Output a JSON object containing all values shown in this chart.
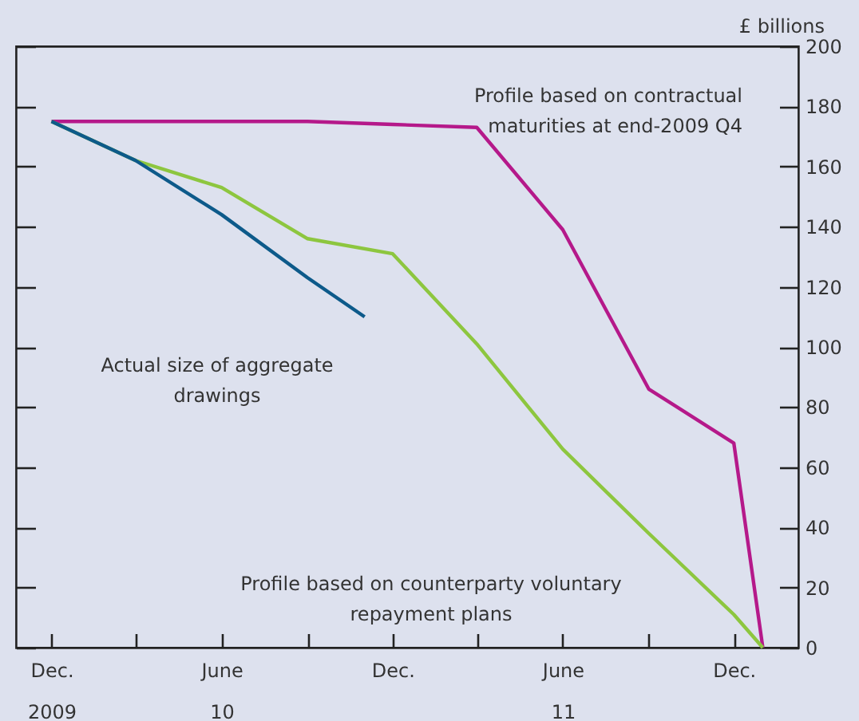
{
  "chart_data": {
    "type": "line",
    "ylabel": "£ billions",
    "xlim": [
      "2009-10-24",
      "2012-02-08"
    ],
    "ylim": [
      0,
      200
    ],
    "yticks": [
      0,
      20,
      40,
      60,
      80,
      100,
      120,
      140,
      160,
      180,
      200
    ],
    "xticks": [
      {
        "value": "2009-12",
        "label": "Dec.\n2009"
      },
      {
        "value": "2010-03",
        "label": null
      },
      {
        "value": "2010-06",
        "label": "June\n10"
      },
      {
        "value": "2010-09",
        "label": null
      },
      {
        "value": "2010-12",
        "label": "Dec."
      },
      {
        "value": "2011-03",
        "label": null
      },
      {
        "value": "2011-06",
        "label": "June\n11"
      },
      {
        "value": "2011-09",
        "label": null
      },
      {
        "value": "2011-12",
        "label": "Dec."
      }
    ],
    "grid": false,
    "legend": false,
    "series": [
      {
        "name": "Profile based on contractual maturities at end-2009 Q4",
        "color": "#b5198a",
        "x": [
          "2009-12",
          "2010-06",
          "2010-09",
          "2010-12",
          "2011-03",
          "2011-06",
          "2011-09",
          "2011-12",
          "2012-01"
        ],
        "values": [
          175,
          175,
          175,
          174,
          173,
          139,
          86,
          68,
          0
        ]
      },
      {
        "name": "Profile based on counterparty voluntary repayment plans",
        "color": "#8dc63f",
        "x": [
          "2009-12",
          "2010-03",
          "2010-06",
          "2010-09",
          "2010-12",
          "2011-03",
          "2011-06",
          "2011-09",
          "2011-12",
          "2012-01"
        ],
        "values": [
          175,
          162,
          153,
          136,
          131,
          101,
          66,
          38,
          11,
          0
        ]
      },
      {
        "name": "Actual size of aggregate drawings",
        "color": "#0d5a8a",
        "x": [
          "2009-12",
          "2010-03",
          "2010-06",
          "2010-09",
          "2010-11"
        ],
        "values": [
          175,
          162,
          144,
          123,
          110
        ]
      }
    ]
  }
}
